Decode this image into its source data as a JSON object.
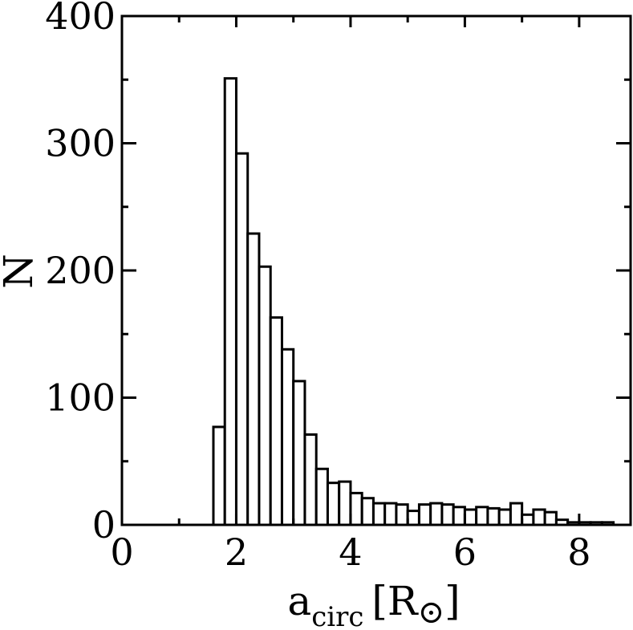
{
  "chart_data": {
    "type": "bar",
    "xlabel": "a",
    "xlabel_subscript": "circ",
    "xlabel_unit_open": "[R",
    "xlabel_unit_symbol": "⊙",
    "xlabel_unit_close": "]",
    "ylabel": "N",
    "xlim": [
      0,
      8.9
    ],
    "ylim": [
      0,
      400
    ],
    "xticks": [
      0,
      2,
      4,
      6,
      8
    ],
    "yticks": [
      0,
      100,
      200,
      300,
      400
    ],
    "x_minor_step": 1,
    "y_minor_step": 50,
    "grid": false,
    "bin_width": 0.2,
    "bins": [
      {
        "x0": 1.6,
        "x1": 1.8,
        "count": 77
      },
      {
        "x0": 1.8,
        "x1": 2.0,
        "count": 351
      },
      {
        "x0": 2.0,
        "x1": 2.2,
        "count": 292
      },
      {
        "x0": 2.2,
        "x1": 2.4,
        "count": 229
      },
      {
        "x0": 2.4,
        "x1": 2.6,
        "count": 203
      },
      {
        "x0": 2.6,
        "x1": 2.8,
        "count": 163
      },
      {
        "x0": 2.8,
        "x1": 3.0,
        "count": 138
      },
      {
        "x0": 3.0,
        "x1": 3.2,
        "count": 113
      },
      {
        "x0": 3.2,
        "x1": 3.4,
        "count": 71
      },
      {
        "x0": 3.4,
        "x1": 3.6,
        "count": 44
      },
      {
        "x0": 3.6,
        "x1": 3.8,
        "count": 33
      },
      {
        "x0": 3.8,
        "x1": 4.0,
        "count": 34
      },
      {
        "x0": 4.0,
        "x1": 4.2,
        "count": 25
      },
      {
        "x0": 4.2,
        "x1": 4.4,
        "count": 21
      },
      {
        "x0": 4.4,
        "x1": 4.6,
        "count": 17
      },
      {
        "x0": 4.6,
        "x1": 4.8,
        "count": 17
      },
      {
        "x0": 4.8,
        "x1": 5.0,
        "count": 16
      },
      {
        "x0": 5.0,
        "x1": 5.2,
        "count": 11
      },
      {
        "x0": 5.2,
        "x1": 5.4,
        "count": 16
      },
      {
        "x0": 5.4,
        "x1": 5.6,
        "count": 17
      },
      {
        "x0": 5.6,
        "x1": 5.8,
        "count": 16
      },
      {
        "x0": 5.8,
        "x1": 6.0,
        "count": 14
      },
      {
        "x0": 6.0,
        "x1": 6.2,
        "count": 12
      },
      {
        "x0": 6.2,
        "x1": 6.4,
        "count": 14
      },
      {
        "x0": 6.4,
        "x1": 6.6,
        "count": 13
      },
      {
        "x0": 6.6,
        "x1": 6.8,
        "count": 12
      },
      {
        "x0": 6.8,
        "x1": 7.0,
        "count": 17
      },
      {
        "x0": 7.0,
        "x1": 7.2,
        "count": 8
      },
      {
        "x0": 7.2,
        "x1": 7.4,
        "count": 12
      },
      {
        "x0": 7.4,
        "x1": 7.6,
        "count": 10
      },
      {
        "x0": 7.6,
        "x1": 7.8,
        "count": 4
      },
      {
        "x0": 7.8,
        "x1": 8.0,
        "count": 2
      },
      {
        "x0": 8.0,
        "x1": 8.2,
        "count": 2
      },
      {
        "x0": 8.2,
        "x1": 8.4,
        "count": 2
      },
      {
        "x0": 8.4,
        "x1": 8.6,
        "count": 2
      }
    ]
  }
}
